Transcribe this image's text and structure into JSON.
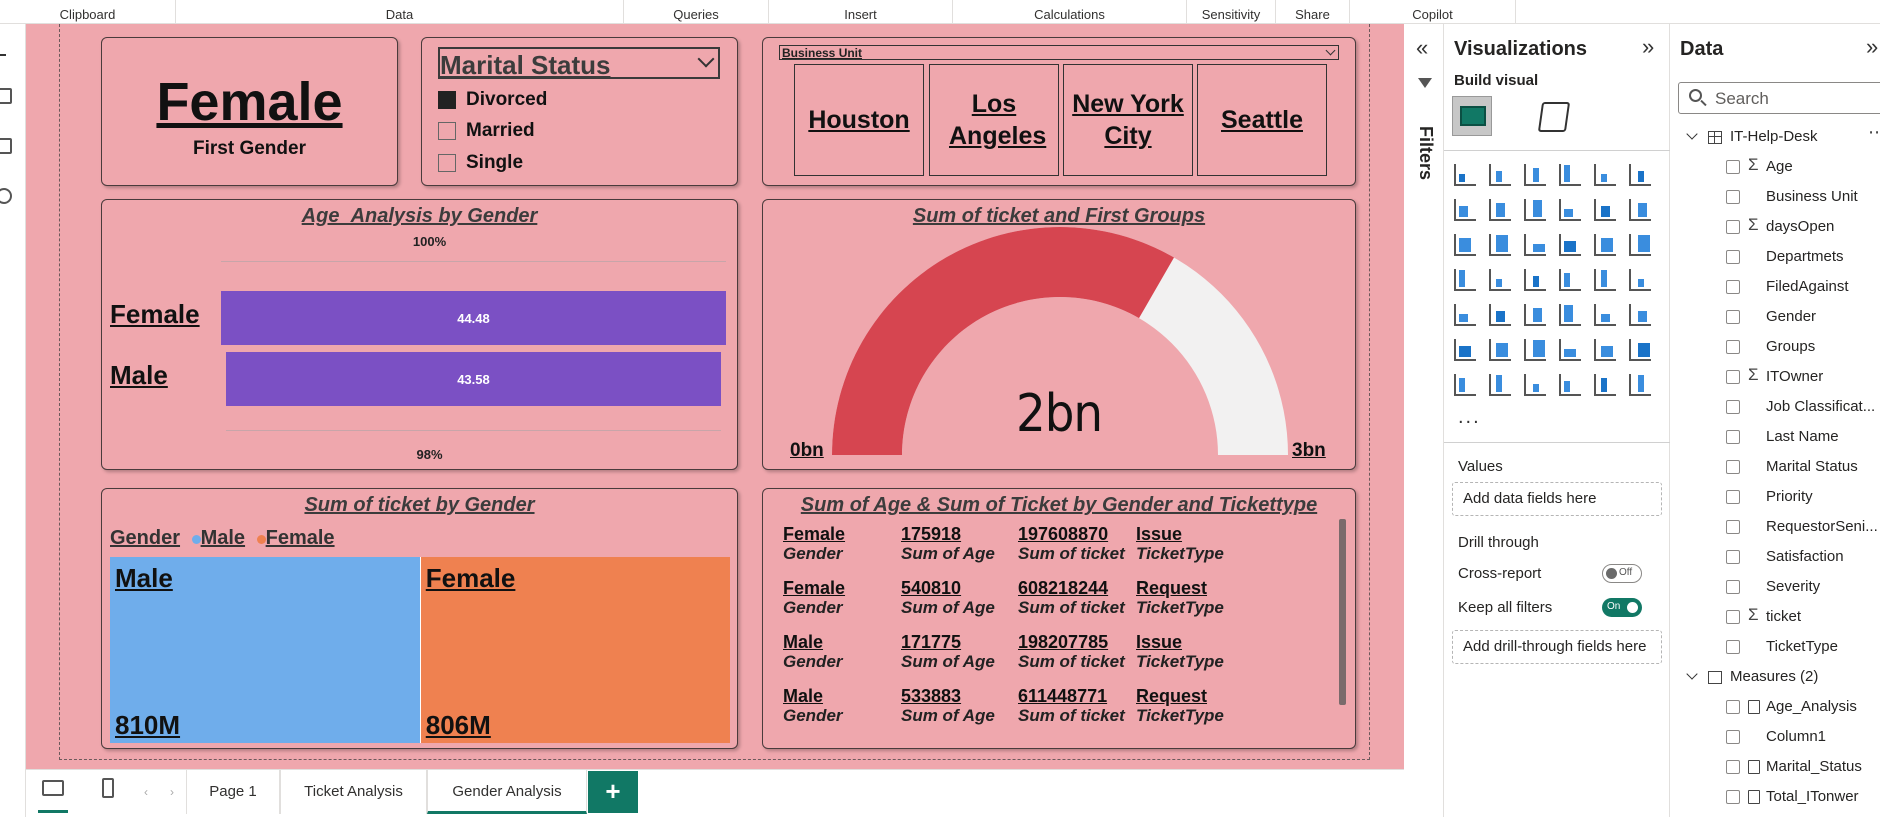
{
  "ribbon": {
    "groups": [
      "Clipboard",
      "Data",
      "Queries",
      "Insert",
      "Calculations",
      "Sensitivity",
      "Share",
      "Copilot"
    ]
  },
  "page": {
    "bg_color": "#efa7ad"
  },
  "card_first_gender": {
    "value": "Female",
    "label": "First Gender"
  },
  "slicer_marital": {
    "title": "Marital Status",
    "items": [
      {
        "label": "Divorced",
        "checked": true
      },
      {
        "label": "Married",
        "checked": false
      },
      {
        "label": "Single",
        "checked": false
      }
    ]
  },
  "slicer_business_unit": {
    "title": "Business Unit",
    "tiles": [
      "Houston",
      "Los Angeles",
      "New York City",
      "Seattle"
    ]
  },
  "age_chart": {
    "title": "Age_Analysis by Gender",
    "top_label": "100%",
    "bottom_label": "98%",
    "bar_color": "#7b50c4"
  },
  "gauge": {
    "title": "Sum of ticket and First Groups",
    "value_label": "2bn",
    "min_label": "0bn",
    "max_label": "3bn",
    "fill_color": "#d64550",
    "track_color": "#f2f1f1"
  },
  "treemap": {
    "title": "Sum of ticket by Gender",
    "legend_title": "Gender",
    "legend": [
      {
        "name": "Male",
        "color": "#6fadeb"
      },
      {
        "name": "Female",
        "color": "#ef8150"
      }
    ]
  },
  "table_visual": {
    "title": "Sum of Age & Sum of Ticket by Gender and Tickettype",
    "rows": [
      {
        "gender": "Female",
        "age": "175918",
        "ticket": "197608870",
        "type": "Issue",
        "gender_lbl": "Gender",
        "age_lbl": "Sum of Age",
        "ticket_lbl": "Sum of ticket",
        "type_lbl": "TicketType"
      },
      {
        "gender": "Female",
        "age": "540810",
        "ticket": "608218244",
        "type": "Request",
        "gender_lbl": "Gender",
        "age_lbl": "Sum of Age",
        "ticket_lbl": "Sum of ticket",
        "type_lbl": "TicketType"
      },
      {
        "gender": "Male",
        "age": "171775",
        "ticket": "198207785",
        "type": "Issue",
        "gender_lbl": "Gender",
        "age_lbl": "Sum of Age",
        "ticket_lbl": "Sum of ticket",
        "type_lbl": "TicketType"
      },
      {
        "gender": "Male",
        "age": "533883",
        "ticket": "611448771",
        "type": "Request",
        "gender_lbl": "Gender",
        "age_lbl": "Sum of Age",
        "ticket_lbl": "Sum of ticket",
        "type_lbl": "TicketType"
      }
    ]
  },
  "tabs": {
    "items": [
      "Page 1",
      "Ticket Analysis",
      "Gender Analysis"
    ],
    "active": "Gender Analysis",
    "add_label": "+"
  },
  "filters_pane": {
    "label": "Filters"
  },
  "visualizations": {
    "title": "Visualizations",
    "build_visual": "Build visual",
    "values_label": "Values",
    "add_data_fields": "Add data fields here",
    "drill_through": "Drill through",
    "cross_report": "Cross-report",
    "cross_report_state": "Off",
    "keep_all_filters": "Keep all filters",
    "keep_all_filters_state": "On",
    "add_drill_fields": "Add drill-through fields here",
    "more": "..."
  },
  "data_pane": {
    "title": "Data",
    "search_placeholder": "Search",
    "table_name": "IT-Help-Desk",
    "fields": [
      {
        "name": "Age",
        "sigma": true
      },
      {
        "name": "Business Unit",
        "sigma": false
      },
      {
        "name": "daysOpen",
        "sigma": true
      },
      {
        "name": "Departmets",
        "sigma": false
      },
      {
        "name": "FiledAgainst",
        "sigma": false
      },
      {
        "name": "Gender",
        "sigma": false
      },
      {
        "name": "Groups",
        "sigma": false
      },
      {
        "name": "ITOwner",
        "sigma": true
      },
      {
        "name": "Job Classificat...",
        "sigma": false
      },
      {
        "name": "Last Name",
        "sigma": false
      },
      {
        "name": "Marital Status",
        "sigma": false
      },
      {
        "name": "Priority",
        "sigma": false
      },
      {
        "name": "RequestorSeni...",
        "sigma": false
      },
      {
        "name": "Satisfaction",
        "sigma": false
      },
      {
        "name": "Severity",
        "sigma": false
      },
      {
        "name": "ticket",
        "sigma": true
      },
      {
        "name": "TicketType",
        "sigma": false
      }
    ],
    "measures_group": "Measures (2)",
    "measures": [
      {
        "name": "Age_Analysis",
        "calc": true
      },
      {
        "name": "Column1",
        "calc": false
      },
      {
        "name": "Marital_Status",
        "calc": true
      },
      {
        "name": "Total_ITonwer",
        "calc": true
      }
    ]
  },
  "chart_data": [
    {
      "type": "bar",
      "title": "Age_Analysis by Gender",
      "categories": [
        "Female",
        "Male"
      ],
      "values": [
        44.48,
        43.58
      ],
      "value_labels": [
        "44.48",
        "43.58"
      ]
    },
    {
      "type": "gauge",
      "title": "Sum of ticket and First Groups",
      "value": 2,
      "min": 0,
      "max": 3,
      "unit": "bn"
    },
    {
      "type": "treemap",
      "title": "Sum of ticket by Gender",
      "categories": [
        "Male",
        "Female"
      ],
      "values": [
        810,
        806
      ],
      "value_labels": [
        "810M",
        "806M"
      ]
    }
  ]
}
